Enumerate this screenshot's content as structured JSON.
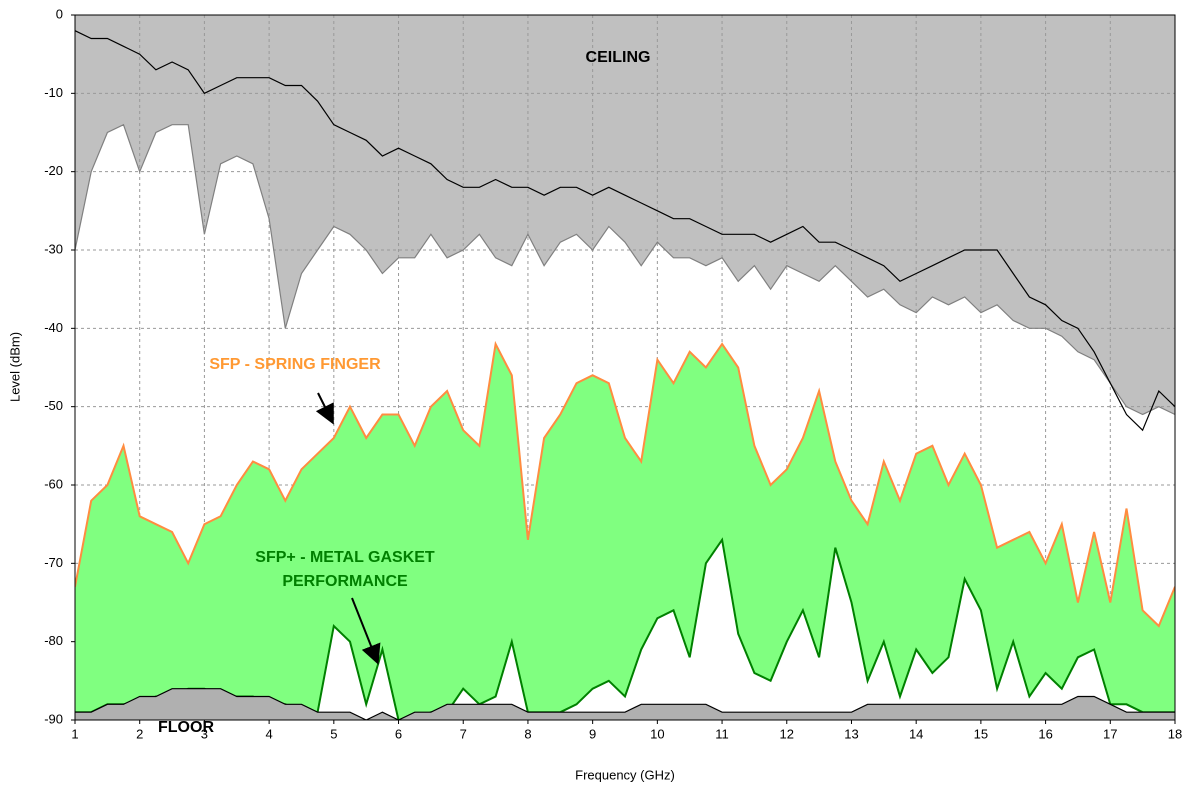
{
  "chart_data": {
    "type": "line",
    "x_label": "Frequency (GHz)",
    "y_label": "Level (dBm)",
    "xlim": [
      1,
      18
    ],
    "ylim": [
      -90,
      0
    ],
    "xticks": [
      1,
      2,
      3,
      4,
      5,
      6,
      7,
      8,
      9,
      10,
      11,
      12,
      13,
      14,
      15,
      16,
      17,
      18
    ],
    "yticks": [
      0,
      -10,
      -20,
      -30,
      -40,
      -50,
      -60,
      -70,
      -80,
      -90
    ],
    "grid": true,
    "annotations": [
      "CEILING",
      "SFP - SPRING FINGER",
      "SFP+ - METAL GASKET",
      "PERFORMANCE",
      "FLOOR"
    ],
    "x": [
      1,
      1.25,
      1.5,
      1.75,
      2,
      2.25,
      2.5,
      2.75,
      3,
      3.25,
      3.5,
      3.75,
      4,
      4.25,
      4.5,
      4.75,
      5,
      5.25,
      5.5,
      5.75,
      6,
      6.25,
      6.5,
      6.75,
      7,
      7.25,
      7.5,
      7.75,
      8,
      8.25,
      8.5,
      8.75,
      9,
      9.25,
      9.5,
      9.75,
      10,
      10.25,
      10.5,
      10.75,
      11,
      11.25,
      11.5,
      11.75,
      12,
      12.25,
      12.5,
      12.75,
      13,
      13.25,
      13.5,
      13.75,
      14,
      14.25,
      14.5,
      14.75,
      15,
      15.25,
      15.5,
      15.75,
      16,
      16.25,
      16.5,
      16.75,
      17,
      17.25,
      17.5,
      17.75,
      18
    ],
    "series": [
      {
        "color": "#808080",
        "fill": "#c0c0c0",
        "fill_to": "top",
        "values": [
          -30,
          -20,
          -15,
          -14,
          -20,
          -15,
          -14,
          -14,
          -28,
          -19,
          -18,
          -19,
          -26,
          -40,
          -33,
          -30,
          -27,
          -28,
          -30,
          -33,
          -31,
          -31,
          -28,
          -31,
          -30,
          -28,
          -31,
          -32,
          -28,
          -32,
          -29,
          -28,
          -30,
          -27,
          -29,
          -32,
          -29,
          -31,
          -31,
          -32,
          -31,
          -34,
          -32,
          -35,
          -32,
          -33,
          -34,
          -32,
          -34,
          -36,
          -35,
          -37,
          -38,
          -36,
          -37,
          -36,
          -38,
          -37,
          -39,
          -40,
          -40,
          -41,
          -43,
          -44,
          -47,
          -50,
          -51,
          -50,
          -51
        ]
      },
      {
        "color": "#000000",
        "values": [
          -2,
          -3,
          -3,
          -4,
          -5,
          -7,
          -6,
          -7,
          -10,
          -9,
          -8,
          -8,
          -8,
          -9,
          -9,
          -11,
          -14,
          -15,
          -16,
          -18,
          -17,
          -18,
          -19,
          -21,
          -22,
          -22,
          -21,
          -22,
          -22,
          -23,
          -22,
          -22,
          -23,
          -22,
          -23,
          -24,
          -25,
          -26,
          -26,
          -27,
          -28,
          -28,
          -28,
          -29,
          -28,
          -27,
          -29,
          -29,
          -30,
          -31,
          -32,
          -34,
          -33,
          -32,
          -31,
          -30,
          -30,
          -30,
          -33,
          -36,
          -37,
          -39,
          -40,
          -43,
          -47,
          -51,
          -53,
          -48,
          -50
        ]
      },
      {
        "color": "#ff8c40",
        "fill": "#80ff80",
        "fill_to": "bottom",
        "values": [
          -73,
          -62,
          -60,
          -55,
          -64,
          -65,
          -66,
          -70,
          -65,
          -64,
          -60,
          -57,
          -58,
          -62,
          -58,
          -56,
          -54,
          -50,
          -54,
          -51,
          -51,
          -55,
          -50,
          -48,
          -53,
          -55,
          -42,
          -46,
          -67,
          -54,
          -51,
          -47,
          -46,
          -47,
          -54,
          -57,
          -44,
          -47,
          -43,
          -45,
          -42,
          -45,
          -55,
          -60,
          -58,
          -54,
          -48,
          -57,
          -62,
          -65,
          -57,
          -62,
          -56,
          -55,
          -60,
          -56,
          -60,
          -68,
          -67,
          -66,
          -70,
          -65,
          -75,
          -66,
          -75,
          -63,
          -76,
          -78,
          -73
        ]
      },
      {
        "color": "#008000",
        "fill": "#ffffff",
        "fill_to": "bottom",
        "values": [
          -89,
          -89,
          -88,
          -88,
          -88,
          -87,
          -87,
          -86,
          -86,
          -87,
          -87,
          -87,
          -88,
          -88,
          -89,
          -89,
          -78,
          -80,
          -88,
          -81,
          -90,
          -90,
          -89,
          -89,
          -86,
          -88,
          -87,
          -80,
          -89,
          -89,
          -89,
          -88,
          -86,
          -85,
          -87,
          -81,
          -77,
          -76,
          -82,
          -70,
          -67,
          -79,
          -84,
          -85,
          -80,
          -76,
          -82,
          -68,
          -75,
          -85,
          -80,
          -87,
          -81,
          -84,
          -82,
          -72,
          -76,
          -86,
          -80,
          -87,
          -84,
          -86,
          -82,
          -81,
          -88,
          -88,
          -89,
          -89,
          -89
        ]
      },
      {
        "color": "#000000",
        "fill": "#b0b0b0",
        "fill_to": "bottom",
        "values": [
          -89,
          -89,
          -88,
          -88,
          -87,
          -87,
          -86,
          -86,
          -86,
          -86,
          -87,
          -87,
          -87,
          -88,
          -88,
          -89,
          -89,
          -89,
          -90,
          -89,
          -90,
          -89,
          -89,
          -88,
          -88,
          -88,
          -88,
          -88,
          -89,
          -89,
          -89,
          -89,
          -89,
          -89,
          -89,
          -88,
          -88,
          -88,
          -88,
          -88,
          -89,
          -89,
          -89,
          -89,
          -89,
          -89,
          -89,
          -89,
          -89,
          -88,
          -88,
          -88,
          -88,
          -88,
          -88,
          -88,
          -88,
          -88,
          -88,
          -88,
          -88,
          -88,
          -87,
          -87,
          -88,
          -89,
          -89,
          -89,
          -89
        ]
      }
    ]
  }
}
